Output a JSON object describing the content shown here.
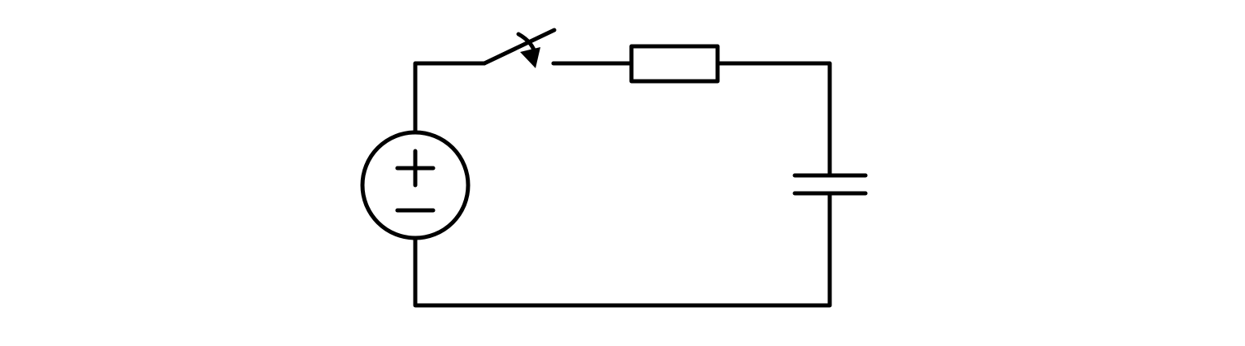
{
  "diagram": {
    "type": "circuit-schematic",
    "components": [
      {
        "id": "voltage-source",
        "kind": "dc-voltage-source",
        "polarity": [
          "+",
          "-"
        ]
      },
      {
        "id": "switch",
        "kind": "spst-switch",
        "state": "open",
        "arrow": "closing"
      },
      {
        "id": "resistor",
        "kind": "resistor",
        "symbol": "rectangle"
      },
      {
        "id": "capacitor",
        "kind": "capacitor"
      }
    ],
    "connection": "series loop",
    "colors": {
      "stroke": "#000000",
      "background": "#ffffff"
    }
  }
}
